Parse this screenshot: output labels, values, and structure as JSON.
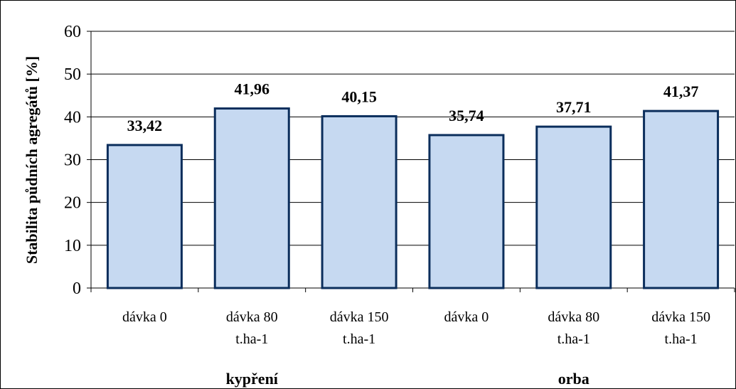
{
  "chart_data": {
    "type": "bar",
    "ylabel": "Stabilita půdních agregátů [%]",
    "ylim": [
      0,
      60
    ],
    "yticks": [
      0,
      10,
      20,
      30,
      40,
      50,
      60
    ],
    "grid": true,
    "categories": [
      [
        "dávka 0"
      ],
      [
        "dávka 80",
        "t.ha-1"
      ],
      [
        "dávka 150",
        "t.ha-1"
      ],
      [
        "dávka 0"
      ],
      [
        "dávka 80",
        "t.ha-1"
      ],
      [
        "dávka 150",
        "t.ha-1"
      ]
    ],
    "values": [
      33.42,
      41.96,
      40.15,
      35.74,
      37.71,
      41.37
    ],
    "value_labels": [
      "33,42",
      "41,96",
      "40,15",
      "35,74",
      "37,71",
      "41,37"
    ],
    "groups": [
      {
        "label": "kypření",
        "span": [
          0,
          2
        ]
      },
      {
        "label": "orba",
        "span": [
          3,
          5
        ]
      }
    ],
    "colors": {
      "bar_fill": "#c6d9f1",
      "bar_stroke": "#0b2e5c",
      "grid": "#000000"
    }
  }
}
